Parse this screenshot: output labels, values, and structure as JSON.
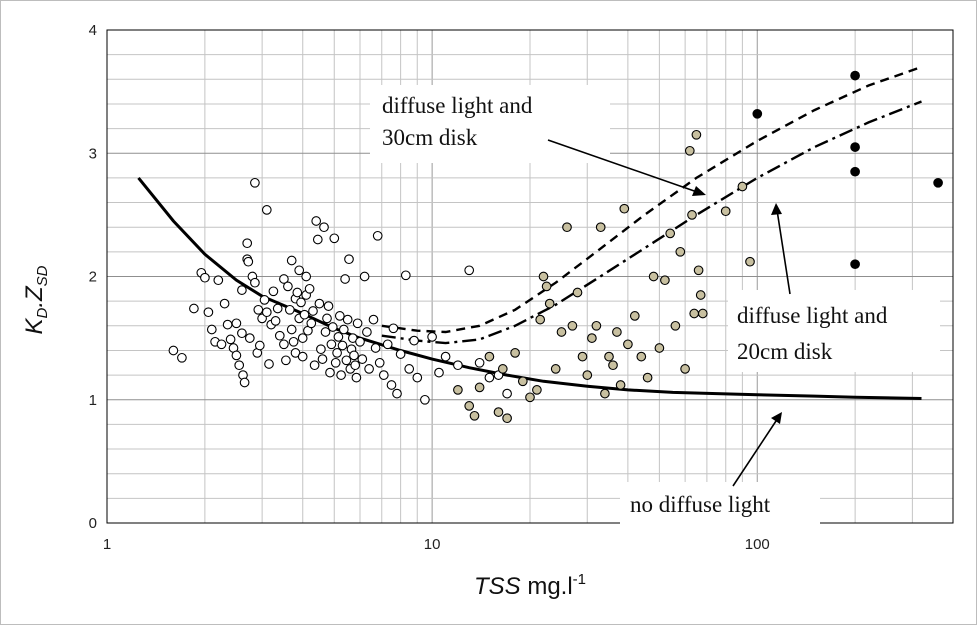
{
  "chart_data": {
    "type": "scatter",
    "xscale": "log",
    "xlim": [
      1,
      400
    ],
    "ylim": [
      0,
      4
    ],
    "x_ticks": [
      1,
      10,
      100
    ],
    "x_tick_labels": [
      "1",
      "10",
      "100"
    ],
    "y_ticks": [
      0,
      1,
      2,
      3,
      4
    ],
    "y_tick_labels": [
      "0",
      "1",
      "2",
      "3",
      "4"
    ],
    "grid": true,
    "ylabel_main": "K",
    "ylabel_sub1": "D",
    "ylabel_mid": ".Z",
    "ylabel_sub2": "SD",
    "xlabel_main": "TSS",
    "xlabel_unit": " mg.l",
    "xlabel_sup": "-1",
    "annotations": {
      "a30_line1": "diffuse light and",
      "a30_line2": "30cm disk",
      "a20_line1": "diffuse light and",
      "a20_line2": "20cm disk",
      "nodiff": "no diffuse light"
    },
    "series": [
      {
        "style": "open",
        "color": "#ffffff",
        "points": [
          [
            1.6,
            1.4
          ],
          [
            1.7,
            1.34
          ],
          [
            1.85,
            1.74
          ],
          [
            1.95,
            2.03
          ],
          [
            2.0,
            1.99
          ],
          [
            2.05,
            1.71
          ],
          [
            2.1,
            1.57
          ],
          [
            2.15,
            1.47
          ],
          [
            2.2,
            1.97
          ],
          [
            2.25,
            1.45
          ],
          [
            2.3,
            1.78
          ],
          [
            2.35,
            1.61
          ],
          [
            2.4,
            1.49
          ],
          [
            2.45,
            1.42
          ],
          [
            2.5,
            1.36
          ],
          [
            2.5,
            1.62
          ],
          [
            2.55,
            1.28
          ],
          [
            2.6,
            1.54
          ],
          [
            2.6,
            1.89
          ],
          [
            2.62,
            1.2
          ],
          [
            2.65,
            1.14
          ],
          [
            2.7,
            2.27
          ],
          [
            2.7,
            2.14
          ],
          [
            2.72,
            2.12
          ],
          [
            2.75,
            1.5
          ],
          [
            2.8,
            2.0
          ],
          [
            2.85,
            1.95
          ],
          [
            2.85,
            2.76
          ],
          [
            2.9,
            1.38
          ],
          [
            2.92,
            1.73
          ],
          [
            2.95,
            1.44
          ],
          [
            3.0,
            1.66
          ],
          [
            3.05,
            1.81
          ],
          [
            3.1,
            1.71
          ],
          [
            3.1,
            2.54
          ],
          [
            3.15,
            1.29
          ],
          [
            3.2,
            1.61
          ],
          [
            3.25,
            1.88
          ],
          [
            3.3,
            1.64
          ],
          [
            3.35,
            1.74
          ],
          [
            3.4,
            1.52
          ],
          [
            3.5,
            1.45
          ],
          [
            3.5,
            1.98
          ],
          [
            3.55,
            1.32
          ],
          [
            3.6,
            1.92
          ],
          [
            3.65,
            1.73
          ],
          [
            3.7,
            1.57
          ],
          [
            3.7,
            2.13
          ],
          [
            3.75,
            1.47
          ],
          [
            3.8,
            1.38
          ],
          [
            3.8,
            1.82
          ],
          [
            3.85,
            1.87
          ],
          [
            3.9,
            2.05
          ],
          [
            3.9,
            1.66
          ],
          [
            3.95,
            1.79
          ],
          [
            4.0,
            1.5
          ],
          [
            4.0,
            1.35
          ],
          [
            4.05,
            1.69
          ],
          [
            4.1,
            2.0
          ],
          [
            4.1,
            1.85
          ],
          [
            4.15,
            1.56
          ],
          [
            4.2,
            1.9
          ],
          [
            4.25,
            1.62
          ],
          [
            4.3,
            1.72
          ],
          [
            4.35,
            1.28
          ],
          [
            4.4,
            2.45
          ],
          [
            4.45,
            2.3
          ],
          [
            4.5,
            1.78
          ],
          [
            4.55,
            1.41
          ],
          [
            4.6,
            1.33
          ],
          [
            4.65,
            2.4
          ],
          [
            4.7,
            1.55
          ],
          [
            4.75,
            1.66
          ],
          [
            4.8,
            1.76
          ],
          [
            4.85,
            1.22
          ],
          [
            4.9,
            1.45
          ],
          [
            4.95,
            1.59
          ],
          [
            5.0,
            2.31
          ],
          [
            5.05,
            1.3
          ],
          [
            5.1,
            1.38
          ],
          [
            5.15,
            1.51
          ],
          [
            5.2,
            1.68
          ],
          [
            5.25,
            1.2
          ],
          [
            5.3,
            1.44
          ],
          [
            5.35,
            1.57
          ],
          [
            5.4,
            1.98
          ],
          [
            5.45,
            1.32
          ],
          [
            5.5,
            1.65
          ],
          [
            5.55,
            2.14
          ],
          [
            5.6,
            1.25
          ],
          [
            5.65,
            1.41
          ],
          [
            5.7,
            1.5
          ],
          [
            5.75,
            1.36
          ],
          [
            5.8,
            1.28
          ],
          [
            5.85,
            1.18
          ],
          [
            5.9,
            1.62
          ],
          [
            6.0,
            1.47
          ],
          [
            6.1,
            1.33
          ],
          [
            6.2,
            2.0
          ],
          [
            6.3,
            1.55
          ],
          [
            6.4,
            1.25
          ],
          [
            6.6,
            1.65
          ],
          [
            6.7,
            1.42
          ],
          [
            6.8,
            2.33
          ],
          [
            6.9,
            1.3
          ],
          [
            7.1,
            1.2
          ],
          [
            7.3,
            1.45
          ],
          [
            7.5,
            1.12
          ],
          [
            7.6,
            1.58
          ],
          [
            7.8,
            1.05
          ],
          [
            8.0,
            1.37
          ],
          [
            8.3,
            2.01
          ],
          [
            8.5,
            1.25
          ],
          [
            8.8,
            1.48
          ],
          [
            9.0,
            1.18
          ],
          [
            9.5,
            1.0
          ],
          [
            10.0,
            1.51
          ],
          [
            10.5,
            1.22
          ],
          [
            11.0,
            1.35
          ],
          [
            12.0,
            1.28
          ],
          [
            13.0,
            2.05
          ],
          [
            14.0,
            1.3
          ],
          [
            15.0,
            1.18
          ],
          [
            16.0,
            1.2
          ],
          [
            17.0,
            1.05
          ]
        ]
      },
      {
        "style": "tan",
        "color": "#c8c0a0",
        "points": [
          [
            12.0,
            1.08
          ],
          [
            13.0,
            0.95
          ],
          [
            13.5,
            0.87
          ],
          [
            14.0,
            1.1
          ],
          [
            15.0,
            1.35
          ],
          [
            16.0,
            0.9
          ],
          [
            16.5,
            1.25
          ],
          [
            17.0,
            0.85
          ],
          [
            18.0,
            1.38
          ],
          [
            19.0,
            1.15
          ],
          [
            20.0,
            1.02
          ],
          [
            21.0,
            1.08
          ],
          [
            21.5,
            1.65
          ],
          [
            22.0,
            2.0
          ],
          [
            22.5,
            1.92
          ],
          [
            23.0,
            1.78
          ],
          [
            24.0,
            1.25
          ],
          [
            25.0,
            1.55
          ],
          [
            26.0,
            2.4
          ],
          [
            27.0,
            1.6
          ],
          [
            28.0,
            1.87
          ],
          [
            29.0,
            1.35
          ],
          [
            30.0,
            1.2
          ],
          [
            31.0,
            1.5
          ],
          [
            32.0,
            1.6
          ],
          [
            33.0,
            2.4
          ],
          [
            34.0,
            1.05
          ],
          [
            35.0,
            1.35
          ],
          [
            36.0,
            1.28
          ],
          [
            37.0,
            1.55
          ],
          [
            38.0,
            1.12
          ],
          [
            39.0,
            2.55
          ],
          [
            40.0,
            1.45
          ],
          [
            42.0,
            1.68
          ],
          [
            44.0,
            1.35
          ],
          [
            46.0,
            1.18
          ],
          [
            48.0,
            2.0
          ],
          [
            50.0,
            1.42
          ],
          [
            52.0,
            1.97
          ],
          [
            54.0,
            2.35
          ],
          [
            56.0,
            1.6
          ],
          [
            58.0,
            2.2
          ],
          [
            60.0,
            1.25
          ],
          [
            62.0,
            3.02
          ],
          [
            63.0,
            2.5
          ],
          [
            64.0,
            1.7
          ],
          [
            65.0,
            3.15
          ],
          [
            66.0,
            2.05
          ],
          [
            67.0,
            1.85
          ],
          [
            68.0,
            1.7
          ],
          [
            80.0,
            2.53
          ],
          [
            90.0,
            2.73
          ],
          [
            95.0,
            2.12
          ]
        ]
      },
      {
        "style": "filled",
        "color": "#000000",
        "points": [
          [
            100,
            3.32
          ],
          [
            200,
            3.63
          ],
          [
            200,
            3.05
          ],
          [
            200,
            2.85
          ],
          [
            200,
            2.1
          ],
          [
            360,
            2.76
          ]
        ]
      }
    ],
    "lines": [
      {
        "name": "diffuse light and 30cm disk",
        "dash": "dashed",
        "points": [
          [
            7,
            1.6
          ],
          [
            9,
            1.56
          ],
          [
            11,
            1.55
          ],
          [
            14,
            1.6
          ],
          [
            18,
            1.73
          ],
          [
            24,
            1.95
          ],
          [
            32,
            2.2
          ],
          [
            45,
            2.5
          ],
          [
            65,
            2.8
          ],
          [
            100,
            3.1
          ],
          [
            150,
            3.35
          ],
          [
            220,
            3.55
          ],
          [
            320,
            3.7
          ]
        ]
      },
      {
        "name": "diffuse light and 20cm disk",
        "dash": "dash-dot",
        "points": [
          [
            7,
            1.52
          ],
          [
            9,
            1.48
          ],
          [
            11,
            1.46
          ],
          [
            14,
            1.49
          ],
          [
            18,
            1.6
          ],
          [
            24,
            1.77
          ],
          [
            32,
            1.98
          ],
          [
            45,
            2.23
          ],
          [
            65,
            2.5
          ],
          [
            100,
            2.8
          ],
          [
            150,
            3.05
          ],
          [
            220,
            3.25
          ],
          [
            320,
            3.42
          ]
        ]
      },
      {
        "name": "no diffuse light",
        "dash": "solid",
        "points": [
          [
            1.25,
            2.8
          ],
          [
            1.6,
            2.45
          ],
          [
            2.0,
            2.18
          ],
          [
            2.5,
            1.97
          ],
          [
            3.0,
            1.84
          ],
          [
            4.0,
            1.7
          ],
          [
            5.0,
            1.58
          ],
          [
            6.0,
            1.5
          ],
          [
            8.0,
            1.4
          ],
          [
            10.0,
            1.33
          ],
          [
            13.0,
            1.26
          ],
          [
            17.0,
            1.2
          ],
          [
            22.0,
            1.15
          ],
          [
            30.0,
            1.11
          ],
          [
            40.0,
            1.08
          ],
          [
            55.0,
            1.06
          ],
          [
            75.0,
            1.05
          ],
          [
            100.0,
            1.04
          ],
          [
            150.0,
            1.03
          ],
          [
            200.0,
            1.02
          ],
          [
            320.0,
            1.01
          ]
        ]
      }
    ]
  }
}
